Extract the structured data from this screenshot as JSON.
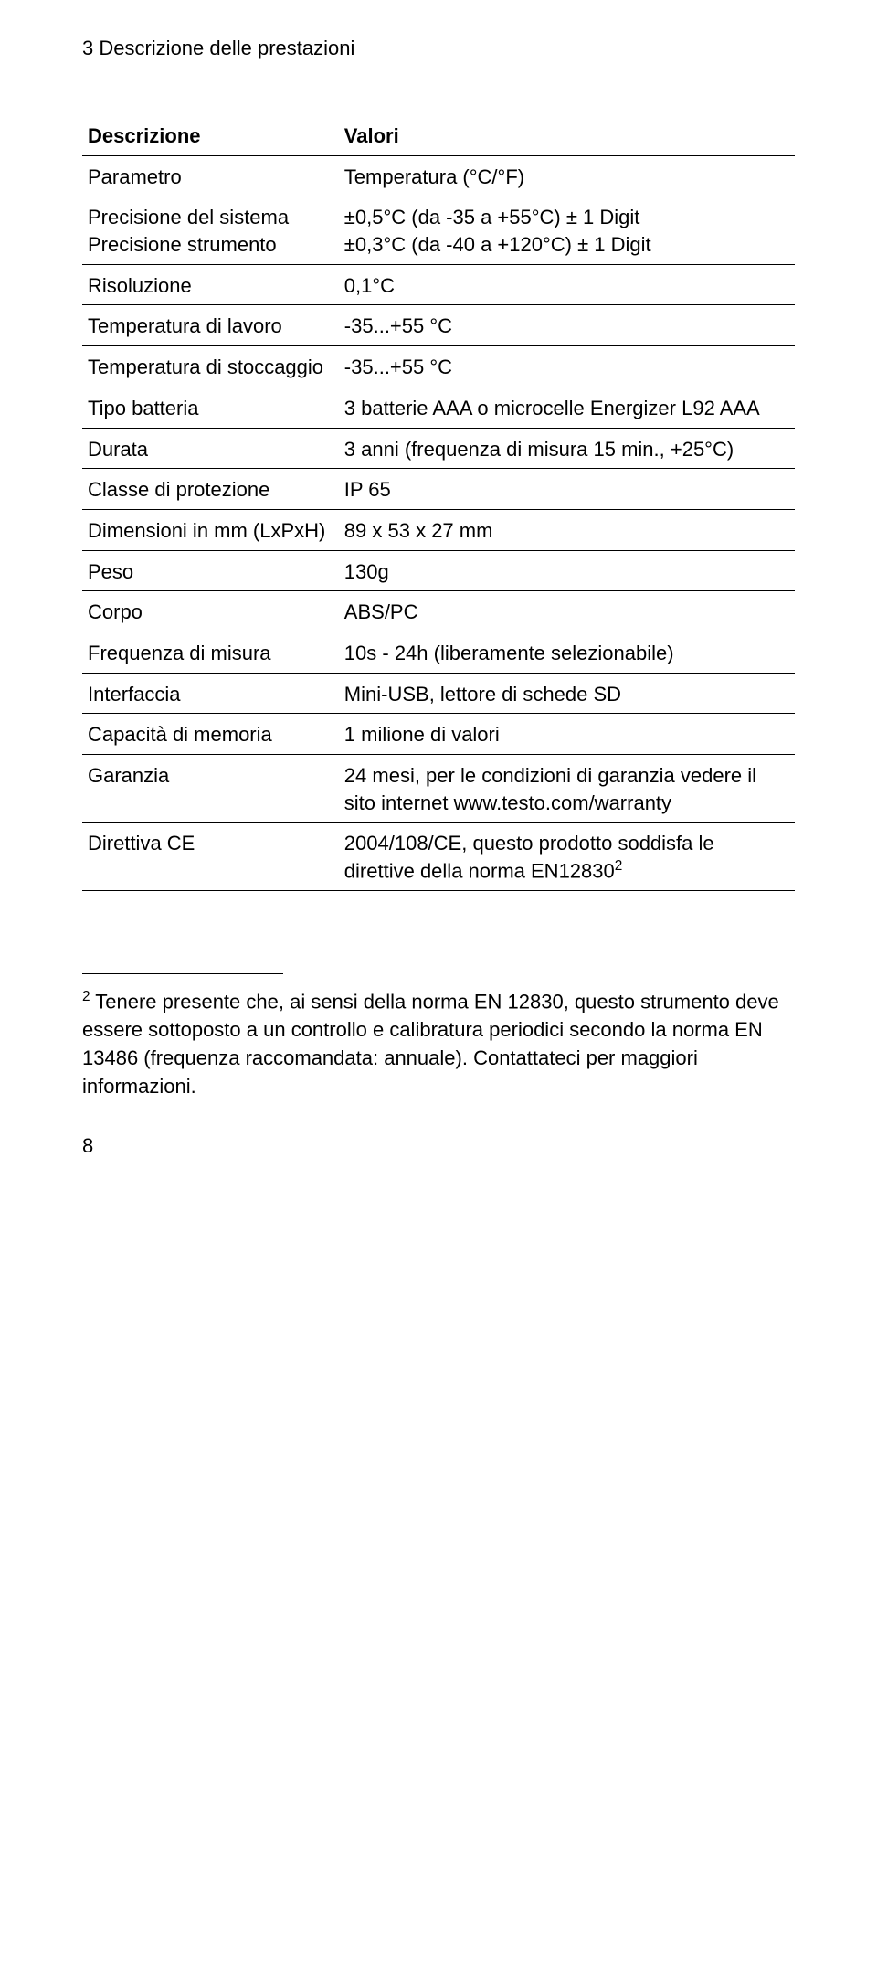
{
  "header": "3 Descrizione delle prestazioni",
  "table": {
    "head_left": "Descrizione",
    "head_right": "Valori",
    "rows": [
      {
        "left": "Parametro",
        "right": "Temperatura (°C/°F)"
      },
      {
        "left": "Precisione del sistema\nPrecisione strumento",
        "right": "±0,5°C (da -35 a +55°C) ± 1 Digit\n±0,3°C (da -40 a +120°C) ± 1 Digit"
      },
      {
        "left": "Risoluzione",
        "right": "0,1°C"
      },
      {
        "left": "Temperatura di lavoro",
        "right": "-35...+55 °C"
      },
      {
        "left": "Temperatura di stoccaggio",
        "right": "-35...+55 °C"
      },
      {
        "left": "Tipo batteria",
        "right": "3 batterie AAA o microcelle Energizer L92 AAA"
      },
      {
        "left": "Durata",
        "right": "3 anni (frequenza di misura 15 min., +25°C)"
      },
      {
        "left": "Classe di protezione",
        "right": "IP 65"
      },
      {
        "left": "Dimensioni in mm (LxPxH)",
        "right": "89 x 53 x 27 mm"
      },
      {
        "left": "Peso",
        "right": "130g"
      },
      {
        "left": "Corpo",
        "right": "ABS/PC"
      },
      {
        "left": "Frequenza di misura",
        "right": "10s - 24h (liberamente selezionabile)"
      },
      {
        "left": "Interfaccia",
        "right": "Mini-USB, lettore di schede SD"
      },
      {
        "left": "Capacità di memoria",
        "right": "1 milione di valori"
      },
      {
        "left": "Garanzia",
        "right": "24 mesi, per le condizioni di garanzia vedere il sito internet www.testo.com/warranty"
      },
      {
        "left": "Direttiva CE",
        "right_html": "2004/108/CE, questo prodotto soddisfa le direttive della norma EN12830<sup>2</sup>"
      }
    ]
  },
  "footnote_html": "<sup>2</sup> Tenere presente che, ai sensi della norma EN 12830, questo strumento deve essere sottoposto a un controllo e calibratura periodici secondo la norma EN 13486 (frequenza raccomandata: annuale). Contattateci per maggiori informazioni.",
  "page_number": "8"
}
